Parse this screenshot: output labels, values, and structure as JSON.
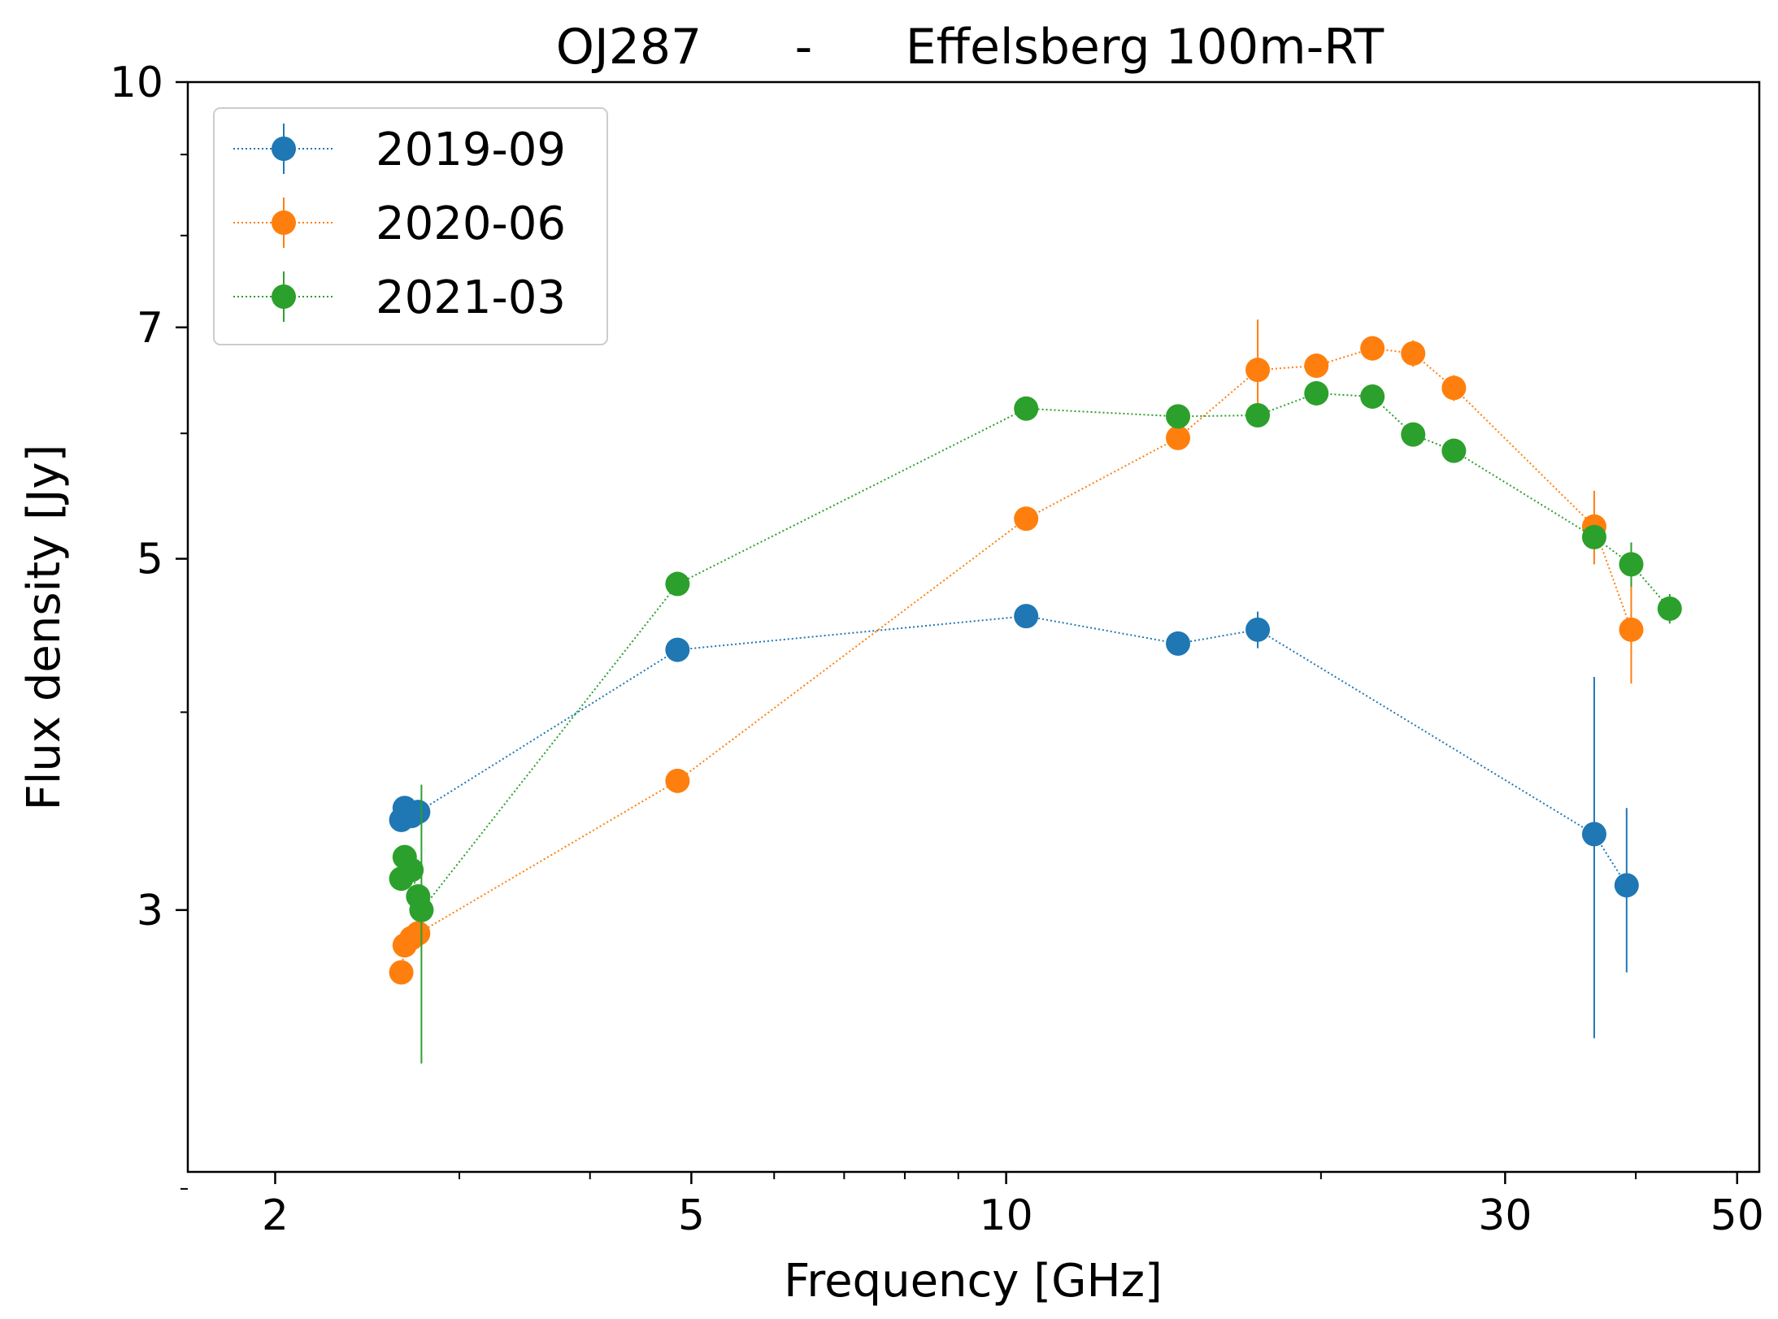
{
  "chart_data": {
    "type": "scatter",
    "title": "OJ287      -      Effelsberg 100m-RT",
    "xlabel": "Frequency [GHz]",
    "ylabel": "Flux density [Jy]",
    "xscale": "log",
    "yscale": "log",
    "xlim": [
      1.65,
      52.5
    ],
    "ylim": [
      2.05,
      10
    ],
    "xticks": [
      {
        "value": 2,
        "label": "2"
      },
      {
        "value": 5,
        "label": "5"
      },
      {
        "value": 10,
        "label": "10"
      },
      {
        "value": 30,
        "label": "30"
      },
      {
        "value": 50,
        "label": "50"
      }
    ],
    "x_minor_ticks": [
      3,
      4,
      6,
      7,
      8,
      9,
      20,
      40
    ],
    "yticks": [
      {
        "value": 3,
        "label": "3"
      },
      {
        "value": 5,
        "label": "5"
      },
      {
        "value": 7,
        "label": "7"
      },
      {
        "value": 10,
        "label": "10"
      }
    ],
    "y_minor_ticks": [
      2,
      4,
      6,
      8,
      9
    ],
    "legend_position": "upper-left",
    "grid": false,
    "series": [
      {
        "name": "2019-09",
        "color": "#1f77b4",
        "points": [
          {
            "x": 2.64,
            "y": 3.42,
            "err": 0.03
          },
          {
            "x": 2.66,
            "y": 3.48,
            "err": 0.03
          },
          {
            "x": 2.7,
            "y": 3.44,
            "err": 0.03
          },
          {
            "x": 2.74,
            "y": 3.46,
            "err": 0.03
          },
          {
            "x": 4.85,
            "y": 4.38,
            "err": 0.02
          },
          {
            "x": 10.45,
            "y": 4.6,
            "err": 0.03
          },
          {
            "x": 14.6,
            "y": 4.42,
            "err": 0.06
          },
          {
            "x": 17.4,
            "y": 4.51,
            "err": 0.12
          },
          {
            "x": 36.5,
            "y": 3.35,
            "err": 0.86
          },
          {
            "x": 39.2,
            "y": 3.11,
            "err": 0.37
          }
        ]
      },
      {
        "name": "2020-06",
        "color": "#ff7f0e",
        "points": [
          {
            "x": 2.64,
            "y": 2.74,
            "err": 0.04
          },
          {
            "x": 2.66,
            "y": 2.85,
            "err": 0.04
          },
          {
            "x": 2.7,
            "y": 2.88,
            "err": 0.04
          },
          {
            "x": 2.74,
            "y": 2.9,
            "err": 0.04
          },
          {
            "x": 4.85,
            "y": 3.62,
            "err": 0.03
          },
          {
            "x": 10.45,
            "y": 5.3,
            "err": 0.03
          },
          {
            "x": 14.6,
            "y": 5.96,
            "err": 0.03
          },
          {
            "x": 17.4,
            "y": 6.58,
            "err": 0.5
          },
          {
            "x": 19.8,
            "y": 6.62,
            "err": 0.1
          },
          {
            "x": 22.4,
            "y": 6.79,
            "err": 0.12
          },
          {
            "x": 24.5,
            "y": 6.74,
            "err": 0.13
          },
          {
            "x": 26.8,
            "y": 6.41,
            "err": 0.12
          },
          {
            "x": 36.5,
            "y": 5.24,
            "err": 0.28
          },
          {
            "x": 39.6,
            "y": 4.51,
            "err": 0.34
          }
        ]
      },
      {
        "name": "2021-03",
        "color": "#2ca02c",
        "points": [
          {
            "x": 2.64,
            "y": 3.14,
            "err": 0.03
          },
          {
            "x": 2.66,
            "y": 3.24,
            "err": 0.03
          },
          {
            "x": 2.7,
            "y": 3.18,
            "err": 0.03
          },
          {
            "x": 2.74,
            "y": 3.06,
            "err": 0.03
          },
          {
            "x": 2.76,
            "y": 3.0,
            "err": 0.6
          },
          {
            "x": 4.85,
            "y": 4.82,
            "err": 0.02
          },
          {
            "x": 10.45,
            "y": 6.22,
            "err": 0.03
          },
          {
            "x": 14.6,
            "y": 6.15,
            "err": 0.03
          },
          {
            "x": 17.4,
            "y": 6.16,
            "err": 0.03
          },
          {
            "x": 19.8,
            "y": 6.36,
            "err": 0.03
          },
          {
            "x": 22.4,
            "y": 6.33,
            "err": 0.03
          },
          {
            "x": 24.5,
            "y": 5.99,
            "err": 0.04
          },
          {
            "x": 26.8,
            "y": 5.85,
            "err": 0.04
          },
          {
            "x": 36.5,
            "y": 5.16,
            "err": 0.05
          },
          {
            "x": 39.6,
            "y": 4.96,
            "err": 0.16
          },
          {
            "x": 43.1,
            "y": 4.65,
            "err": 0.1
          }
        ]
      }
    ]
  }
}
